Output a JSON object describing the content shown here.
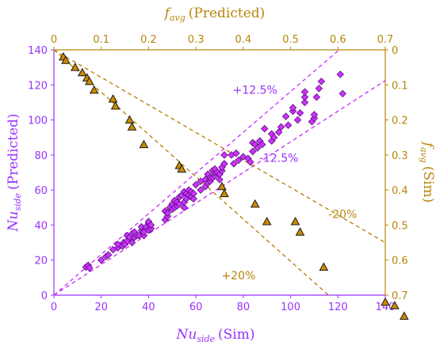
{
  "chart_data": {
    "type": "scatter",
    "axes": {
      "bottom": {
        "min": 0,
        "max": 140,
        "step": 20,
        "label_main": "Nu",
        "label_sub": "side",
        "label_rest": "(Sim)",
        "color": "#9b30ff"
      },
      "left": {
        "min": 0,
        "max": 140,
        "step": 20,
        "label_main": "Nu",
        "label_sub": "side",
        "label_rest": "(Predicted)",
        "color": "#9b30ff"
      },
      "top": {
        "min": 0,
        "max": 0.7,
        "step": 0.1,
        "label_main": "f",
        "label_sub": "avg",
        "label_rest": "(Predicted)",
        "color": "#b8860b"
      },
      "right": {
        "min": 0,
        "max": 0.7,
        "step": 0.1,
        "reversed": true,
        "label_main": "f",
        "label_sub": "avg",
        "label_rest": "(Sim)",
        "color": "#b8860b"
      }
    },
    "bottom_ticks": [
      "0",
      "20",
      "40",
      "60",
      "80",
      "100",
      "120",
      "140"
    ],
    "left_ticks": [
      "0",
      "20",
      "40",
      "60",
      "80",
      "100",
      "120",
      "140"
    ],
    "top_ticks": [
      "0",
      "0.1",
      "0.2",
      "0.3",
      "0.4",
      "0.5",
      "0.6",
      "0.7"
    ],
    "right_ticks": [
      "0",
      "0.1",
      "0.2",
      "0.3",
      "0.4",
      "0.5",
      "0.6",
      "0.7"
    ],
    "grid": false,
    "series": [
      {
        "marker": "diamond",
        "color": "#cc33ff",
        "axes": "bottom-left",
        "points": [
          [
            13.5,
            16
          ],
          [
            14.5,
            17
          ],
          [
            15,
            15.5
          ],
          [
            20,
            20
          ],
          [
            22,
            22
          ],
          [
            23,
            23
          ],
          [
            25,
            26
          ],
          [
            27,
            27
          ],
          [
            27,
            29
          ],
          [
            29,
            28
          ],
          [
            29.5,
            30
          ],
          [
            30,
            29
          ],
          [
            31,
            31
          ],
          [
            31,
            34
          ],
          [
            32,
            33
          ],
          [
            33,
            30
          ],
          [
            33,
            35
          ],
          [
            34,
            33
          ],
          [
            34,
            36
          ],
          [
            35,
            34
          ],
          [
            36,
            34
          ],
          [
            37,
            37
          ],
          [
            37,
            39
          ],
          [
            38,
            34
          ],
          [
            38,
            36
          ],
          [
            39,
            39
          ],
          [
            40,
            37
          ],
          [
            40,
            41
          ],
          [
            40,
            42
          ],
          [
            41,
            38
          ],
          [
            41,
            40
          ],
          [
            47,
            43
          ],
          [
            47,
            48
          ],
          [
            48,
            45
          ],
          [
            48,
            47
          ],
          [
            49,
            50
          ],
          [
            50,
            49
          ],
          [
            50,
            52
          ],
          [
            51,
            50
          ],
          [
            51,
            54
          ],
          [
            52,
            51
          ],
          [
            52,
            53
          ],
          [
            53,
            52
          ],
          [
            53,
            56
          ],
          [
            54,
            57
          ],
          [
            55,
            50
          ],
          [
            55,
            53
          ],
          [
            55,
            59
          ],
          [
            56,
            55
          ],
          [
            56,
            58
          ],
          [
            57,
            57
          ],
          [
            57,
            60
          ],
          [
            58,
            56
          ],
          [
            58,
            59
          ],
          [
            59,
            55
          ],
          [
            59,
            58
          ],
          [
            60,
            63
          ],
          [
            62,
            60
          ],
          [
            62,
            65
          ],
          [
            64,
            62
          ],
          [
            64,
            66
          ],
          [
            65,
            64
          ],
          [
            65,
            69
          ],
          [
            66,
            65
          ],
          [
            66,
            67
          ],
          [
            67,
            67
          ],
          [
            67,
            71
          ],
          [
            68,
            68
          ],
          [
            68,
            70
          ],
          [
            68,
            72
          ],
          [
            69,
            70
          ],
          [
            70,
            66
          ],
          [
            70,
            69
          ],
          [
            71,
            71
          ],
          [
            71,
            73
          ],
          [
            72,
            75
          ],
          [
            72,
            80
          ],
          [
            75,
            80
          ],
          [
            76,
            75
          ],
          [
            77,
            81
          ],
          [
            78,
            77
          ],
          [
            80,
            79
          ],
          [
            82,
            78
          ],
          [
            83,
            76
          ],
          [
            84,
            82
          ],
          [
            84,
            87
          ],
          [
            85,
            86
          ],
          [
            86,
            84
          ],
          [
            87,
            88
          ],
          [
            88,
            86
          ],
          [
            89,
            95
          ],
          [
            92,
            88
          ],
          [
            92,
            92
          ],
          [
            93,
            90
          ],
          [
            95,
            93
          ],
          [
            96,
            96
          ],
          [
            98,
            102
          ],
          [
            99,
            97
          ],
          [
            101,
            105
          ],
          [
            101,
            107
          ],
          [
            103,
            100
          ],
          [
            104,
            104
          ],
          [
            106,
            110
          ],
          [
            106,
            113
          ],
          [
            106,
            116
          ],
          [
            109,
            99
          ],
          [
            110,
            101
          ],
          [
            110,
            103
          ],
          [
            111,
            113
          ],
          [
            112,
            118
          ],
          [
            113,
            122
          ],
          [
            121,
            126
          ],
          [
            122,
            115
          ]
        ]
      },
      {
        "marker": "triangle",
        "color": "#cc8a00",
        "axes": "top-right",
        "points": [
          [
            0.02,
            0.02
          ],
          [
            0.025,
            0.03
          ],
          [
            0.045,
            0.05
          ],
          [
            0.06,
            0.065
          ],
          [
            0.07,
            0.08
          ],
          [
            0.075,
            0.09
          ],
          [
            0.085,
            0.115
          ],
          [
            0.125,
            0.14
          ],
          [
            0.13,
            0.16
          ],
          [
            0.16,
            0.2
          ],
          [
            0.165,
            0.22
          ],
          [
            0.19,
            0.27
          ],
          [
            0.265,
            0.33
          ],
          [
            0.27,
            0.34
          ],
          [
            0.355,
            0.39
          ],
          [
            0.36,
            0.41
          ],
          [
            0.425,
            0.44
          ],
          [
            0.45,
            0.49
          ],
          [
            0.51,
            0.49
          ],
          [
            0.52,
            0.52
          ],
          [
            0.57,
            0.62
          ],
          [
            0.7,
            0.72
          ],
          [
            0.72,
            0.73
          ],
          [
            0.74,
            0.76
          ]
        ]
      }
    ],
    "reference_lines": [
      {
        "axes": "bottom-left",
        "from": [
          0,
          0
        ],
        "to": [
          120.5,
          140
        ],
        "color": "#cc33ff",
        "dash": "5,4"
      },
      {
        "axes": "bottom-left",
        "from": [
          0,
          0
        ],
        "to": [
          140,
          122.5
        ],
        "color": "#cc33ff",
        "dash": "5,4"
      },
      {
        "axes": "top-right",
        "from": [
          0.0,
          0.0
        ],
        "to": [
          0.58,
          0.7
        ],
        "color": "#b8860b",
        "dash": "5,4"
      },
      {
        "axes": "top-right",
        "from": [
          0.0,
          0.0
        ],
        "to": [
          0.7,
          0.55
        ],
        "color": "#b8860b",
        "dash": "5,4"
      }
    ],
    "annotations": [
      {
        "text": "+12.5%",
        "at": [
          85,
          115
        ],
        "axes": "bottom-left",
        "color": "#9b30ff"
      },
      {
        "text": "-12.5%",
        "at": [
          95,
          76
        ],
        "axes": "bottom-left",
        "color": "#9b30ff"
      },
      {
        "text": "-20%",
        "at": [
          0.61,
          0.48
        ],
        "axes": "top-right",
        "color": "#b8860b"
      },
      {
        "text": "+20%",
        "at": [
          0.39,
          0.655
        ],
        "axes": "top-right",
        "color": "#b8860b"
      }
    ]
  }
}
